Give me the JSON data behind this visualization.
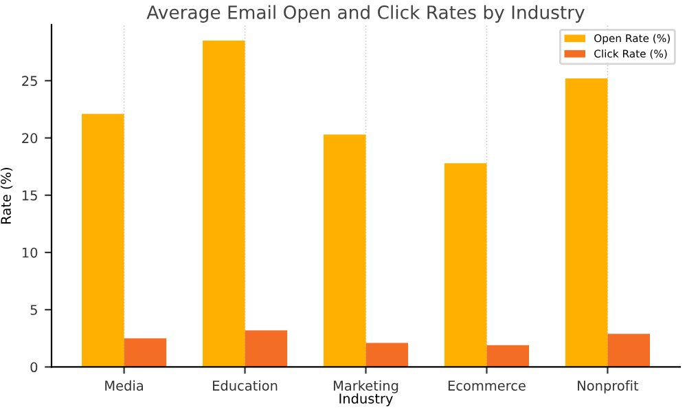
{
  "chart_data": {
    "type": "bar",
    "title": "Average Email Open and Click Rates by Industry",
    "xlabel": "Industry",
    "ylabel": "Rate (%)",
    "categories": [
      "Media",
      "Education",
      "Marketing",
      "Ecommerce",
      "Nonprofit"
    ],
    "series": [
      {
        "name": "Open Rate (%)",
        "color": "#ffb000",
        "values": [
          22.1,
          28.5,
          20.3,
          17.8,
          25.2
        ]
      },
      {
        "name": "Click Rate (%)",
        "color": "#f46d25",
        "values": [
          2.5,
          3.2,
          2.1,
          1.9,
          2.9
        ]
      }
    ],
    "ylim": [
      0,
      29.9
    ],
    "yticks": [
      0,
      5,
      10,
      15,
      20,
      25
    ],
    "grid": "x",
    "legend": "top right"
  }
}
